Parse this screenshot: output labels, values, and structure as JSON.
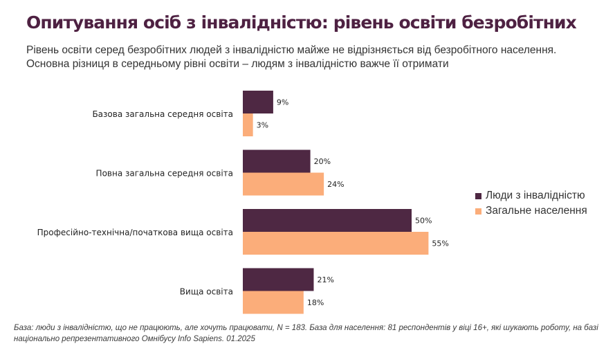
{
  "header": {
    "title": "Опитування осіб з інвалідністю: рівень освіти безробітних",
    "subtitle_line1": "Рівень освіти серед безробітних людей з інвалідністю майже не відрізняється від безробітного населення.",
    "subtitle_line2": "Основна різниця в середньому рівні освіти – людям з інвалідністю важче її отримати"
  },
  "footnote": "База: люди з інвалідністю, що не працюють, але хочуть працювати, N = 183. База для населення: 81 респондентів у віці 16+, які шукають роботу, на базі національно репрезентативного Омнібусу Info Sapiens. 01.2025",
  "colors": {
    "series1": "#4e2843",
    "series2": "#fbad7a",
    "title": "#4e2142"
  },
  "chart_data": {
    "type": "bar",
    "orientation": "horizontal",
    "title": "Опитування осіб з інвалідністю: рівень освіти безробітних",
    "categories": [
      "Базова загальна середня освіта",
      "Повна загальна середня освіта",
      "Професійно-технічна/початкова вища освіта",
      "Вища освіта"
    ],
    "series": [
      {
        "name": "Люди з інвалідністю",
        "values": [
          9,
          20,
          50,
          21
        ],
        "labels": [
          "9%",
          "20%",
          "50%",
          "21%"
        ]
      },
      {
        "name": "Загальне населення",
        "values": [
          3,
          24,
          55,
          18
        ],
        "labels": [
          "3%",
          "24%",
          "55%",
          "18%"
        ]
      }
    ],
    "xlabel": "",
    "ylabel": "",
    "xlim": [
      0,
      100
    ],
    "grid": false,
    "legend": "right",
    "unit": "%"
  }
}
